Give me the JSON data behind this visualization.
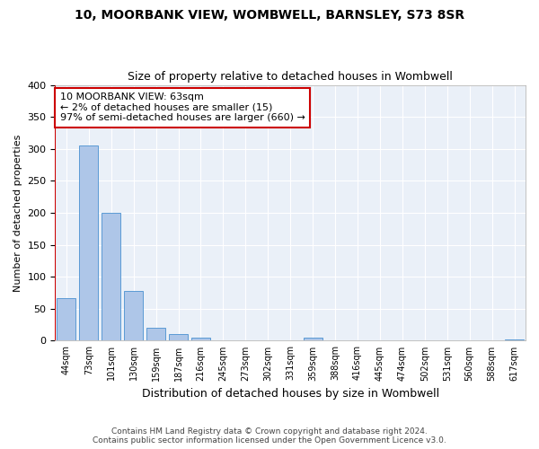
{
  "title": "10, MOORBANK VIEW, WOMBWELL, BARNSLEY, S73 8SR",
  "subtitle": "Size of property relative to detached houses in Wombwell",
  "xlabel": "Distribution of detached houses by size in Wombwell",
  "ylabel": "Number of detached properties",
  "bar_labels": [
    "44sqm",
    "73sqm",
    "101sqm",
    "130sqm",
    "159sqm",
    "187sqm",
    "216sqm",
    "245sqm",
    "273sqm",
    "302sqm",
    "331sqm",
    "359sqm",
    "388sqm",
    "416sqm",
    "445sqm",
    "474sqm",
    "502sqm",
    "531sqm",
    "560sqm",
    "588sqm",
    "617sqm"
  ],
  "bar_values": [
    67,
    305,
    200,
    78,
    20,
    10,
    5,
    1,
    1,
    1,
    1,
    5,
    1,
    1,
    1,
    1,
    1,
    1,
    1,
    1,
    2
  ],
  "bar_color": "#aec6e8",
  "bar_edgecolor": "#5b9bd5",
  "annotation_line1": "10 MOORBANK VIEW: 63sqm",
  "annotation_line2": "← 2% of detached houses are smaller (15)",
  "annotation_line3": "97% of semi-detached houses are larger (660) →",
  "annotation_box_color": "#ffffff",
  "annotation_box_edgecolor": "#cc0000",
  "vline_color": "#cc0000",
  "bg_color": "#eaf0f8",
  "grid_color": "#ffffff",
  "footer_line1": "Contains HM Land Registry data © Crown copyright and database right 2024.",
  "footer_line2": "Contains public sector information licensed under the Open Government Licence v3.0.",
  "ylim": [
    0,
    400
  ],
  "yticks": [
    0,
    50,
    100,
    150,
    200,
    250,
    300,
    350,
    400
  ]
}
